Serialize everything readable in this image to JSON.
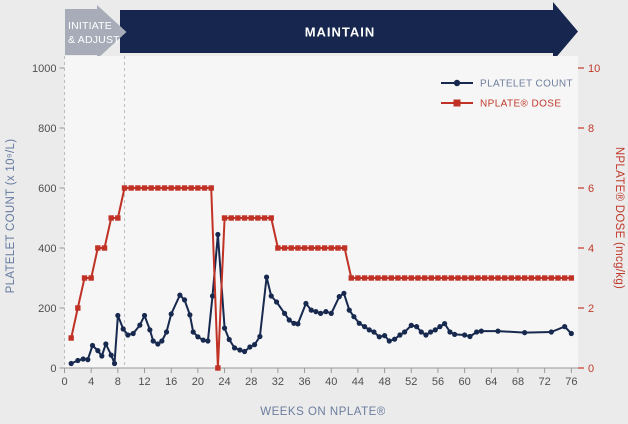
{
  "banner": {
    "initiate_line1": "INITIATE",
    "initiate_line2": "& ADJUST",
    "maintain_label": "MAINTAIN",
    "initiate_color": "#a7acb8",
    "maintain_color": "#16264e",
    "text_color": "#ffffff"
  },
  "chart_data": {
    "type": "line",
    "xlabel": "WEEKS ON NPLATE®",
    "xlabel_color": "#6b7d9e",
    "x_ticks": [
      0,
      4,
      8,
      12,
      16,
      20,
      24,
      28,
      32,
      36,
      40,
      44,
      48,
      52,
      56,
      60,
      64,
      68,
      72,
      76
    ],
    "xlim": [
      0,
      77
    ],
    "tick_label_color": "#4f4f4f",
    "phase_boundaries_weeks": [
      0,
      9
    ],
    "left_axis": {
      "label": "PLATELET COUNT (x 10⁹/L)",
      "ticks": [
        0,
        200,
        400,
        600,
        800,
        1000
      ],
      "lim": [
        0,
        1000
      ],
      "color": "#64799f"
    },
    "right_axis": {
      "label": "NPLATE® DOSE (mcg/kg)",
      "ticks": [
        0,
        2,
        4,
        6,
        8,
        10
      ],
      "lim": [
        0,
        10
      ],
      "color": "#c0392b"
    },
    "legend": {
      "position": "top-right",
      "items": [
        {
          "label": "PLATELET COUNT",
          "marker": "circle",
          "swatch_color": "#17294e",
          "text_color": "#6e7e9c"
        },
        {
          "label": "NPLATE® DOSE",
          "marker": "square",
          "swatch_color": "#c03226",
          "text_color": "#c0392b"
        }
      ]
    },
    "series": [
      {
        "name": "PLATELET COUNT",
        "axis": "left",
        "color": "#17294e",
        "marker": "circle",
        "points": [
          [
            1,
            15
          ],
          [
            2,
            25
          ],
          [
            2.8,
            30
          ],
          [
            3.5,
            28
          ],
          [
            4.2,
            75
          ],
          [
            5,
            58
          ],
          [
            5.6,
            40
          ],
          [
            6.2,
            80
          ],
          [
            7,
            43
          ],
          [
            7.5,
            15
          ],
          [
            8,
            175
          ],
          [
            8.8,
            130
          ],
          [
            9.5,
            110
          ],
          [
            10.3,
            115
          ],
          [
            11.3,
            143
          ],
          [
            12,
            175
          ],
          [
            12.8,
            127
          ],
          [
            13.3,
            90
          ],
          [
            14,
            80
          ],
          [
            14.6,
            90
          ],
          [
            15.3,
            120
          ],
          [
            16,
            180
          ],
          [
            17.3,
            243
          ],
          [
            18,
            227
          ],
          [
            18.8,
            177
          ],
          [
            19.3,
            120
          ],
          [
            20,
            104
          ],
          [
            20.8,
            93
          ],
          [
            21.5,
            90
          ],
          [
            22.2,
            240
          ],
          [
            23,
            445
          ],
          [
            24,
            133
          ],
          [
            24.7,
            95
          ],
          [
            25.5,
            67
          ],
          [
            26.3,
            60
          ],
          [
            27,
            55
          ],
          [
            27.8,
            70
          ],
          [
            28.5,
            78
          ],
          [
            29.3,
            105
          ],
          [
            30.3,
            303
          ],
          [
            31,
            240
          ],
          [
            31.8,
            220
          ],
          [
            33,
            182
          ],
          [
            33.7,
            160
          ],
          [
            34.4,
            149
          ],
          [
            35,
            147
          ],
          [
            36.2,
            215
          ],
          [
            37,
            193
          ],
          [
            37.7,
            188
          ],
          [
            38.4,
            182
          ],
          [
            39.2,
            188
          ],
          [
            40,
            182
          ],
          [
            41.2,
            238
          ],
          [
            41.9,
            249
          ],
          [
            42.7,
            193
          ],
          [
            43.4,
            171
          ],
          [
            44.2,
            149
          ],
          [
            45,
            138
          ],
          [
            45.7,
            127
          ],
          [
            46.4,
            120
          ],
          [
            47.2,
            104
          ],
          [
            48,
            108
          ],
          [
            48.7,
            90
          ],
          [
            49.5,
            96
          ],
          [
            50.3,
            110
          ],
          [
            51,
            120
          ],
          [
            52,
            142
          ],
          [
            52.8,
            138
          ],
          [
            53.5,
            120
          ],
          [
            54.2,
            110
          ],
          [
            54.9,
            120
          ],
          [
            55.6,
            127
          ],
          [
            56.3,
            138
          ],
          [
            57,
            148
          ],
          [
            57.8,
            120
          ],
          [
            58.5,
            112
          ],
          [
            60,
            110
          ],
          [
            60.8,
            105
          ],
          [
            61.8,
            120
          ],
          [
            62.5,
            123
          ],
          [
            65,
            123
          ],
          [
            69,
            118
          ],
          [
            73,
            120
          ],
          [
            75,
            138
          ],
          [
            76,
            115
          ]
        ]
      },
      {
        "name": "NPLATE® DOSE",
        "axis": "right",
        "color": "#c03226",
        "marker": "square",
        "points": [
          [
            1,
            1
          ],
          [
            2,
            2
          ],
          [
            3,
            3
          ],
          [
            4,
            3
          ],
          [
            5,
            4
          ],
          [
            6,
            4
          ],
          [
            7,
            5
          ],
          [
            8,
            5
          ],
          [
            9,
            6
          ],
          [
            10,
            6
          ],
          [
            11,
            6
          ],
          [
            12,
            6
          ],
          [
            13,
            6
          ],
          [
            14,
            6
          ],
          [
            15,
            6
          ],
          [
            16,
            6
          ],
          [
            17,
            6
          ],
          [
            18,
            6
          ],
          [
            19,
            6
          ],
          [
            20,
            6
          ],
          [
            21,
            6
          ],
          [
            22,
            6
          ],
          [
            23,
            0
          ],
          [
            24,
            5
          ],
          [
            25,
            5
          ],
          [
            26,
            5
          ],
          [
            27,
            5
          ],
          [
            28,
            5
          ],
          [
            29,
            5
          ],
          [
            30,
            5
          ],
          [
            31,
            5
          ],
          [
            32,
            4
          ],
          [
            33,
            4
          ],
          [
            34,
            4
          ],
          [
            35,
            4
          ],
          [
            36,
            4
          ],
          [
            37,
            4
          ],
          [
            38,
            4
          ],
          [
            39,
            4
          ],
          [
            40,
            4
          ],
          [
            41,
            4
          ],
          [
            42,
            4
          ],
          [
            43,
            3
          ],
          [
            44,
            3
          ],
          [
            45,
            3
          ],
          [
            46,
            3
          ],
          [
            47,
            3
          ],
          [
            48,
            3
          ],
          [
            49,
            3
          ],
          [
            50,
            3
          ],
          [
            51,
            3
          ],
          [
            52,
            3
          ],
          [
            53,
            3
          ],
          [
            54,
            3
          ],
          [
            55,
            3
          ],
          [
            56,
            3
          ],
          [
            57,
            3
          ],
          [
            58,
            3
          ],
          [
            59,
            3
          ],
          [
            60,
            3
          ],
          [
            61,
            3
          ],
          [
            62,
            3
          ],
          [
            63,
            3
          ],
          [
            64,
            3
          ],
          [
            65,
            3
          ],
          [
            66,
            3
          ],
          [
            67,
            3
          ],
          [
            68,
            3
          ],
          [
            69,
            3
          ],
          [
            70,
            3
          ],
          [
            71,
            3
          ],
          [
            72,
            3
          ],
          [
            73,
            3
          ],
          [
            74,
            3
          ],
          [
            75,
            3
          ],
          [
            76,
            3
          ]
        ]
      }
    ]
  }
}
